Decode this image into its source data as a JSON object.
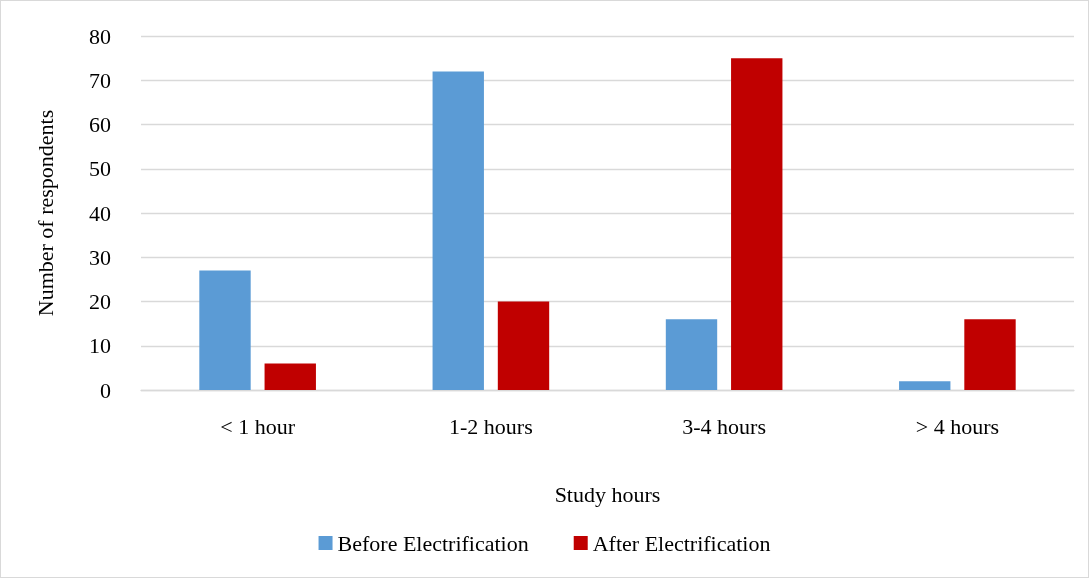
{
  "chart_data": {
    "type": "bar",
    "xlabel": "Study hours",
    "ylabel": "Number of respondents",
    "categories": [
      "< 1 hour",
      "1-2 hours",
      "3-4 hours",
      "> 4 hours"
    ],
    "series": [
      {
        "name": "Before Electrification",
        "color": "#5b9bd5",
        "values": [
          27,
          72,
          16,
          2
        ]
      },
      {
        "name": "After Electrification",
        "color": "#c00000",
        "values": [
          6,
          20,
          75,
          16
        ]
      }
    ],
    "ylim": [
      0,
      80
    ],
    "yticks": [
      0,
      10,
      20,
      30,
      40,
      50,
      60,
      70,
      80
    ],
    "grid": "y",
    "legend": "bottom"
  }
}
